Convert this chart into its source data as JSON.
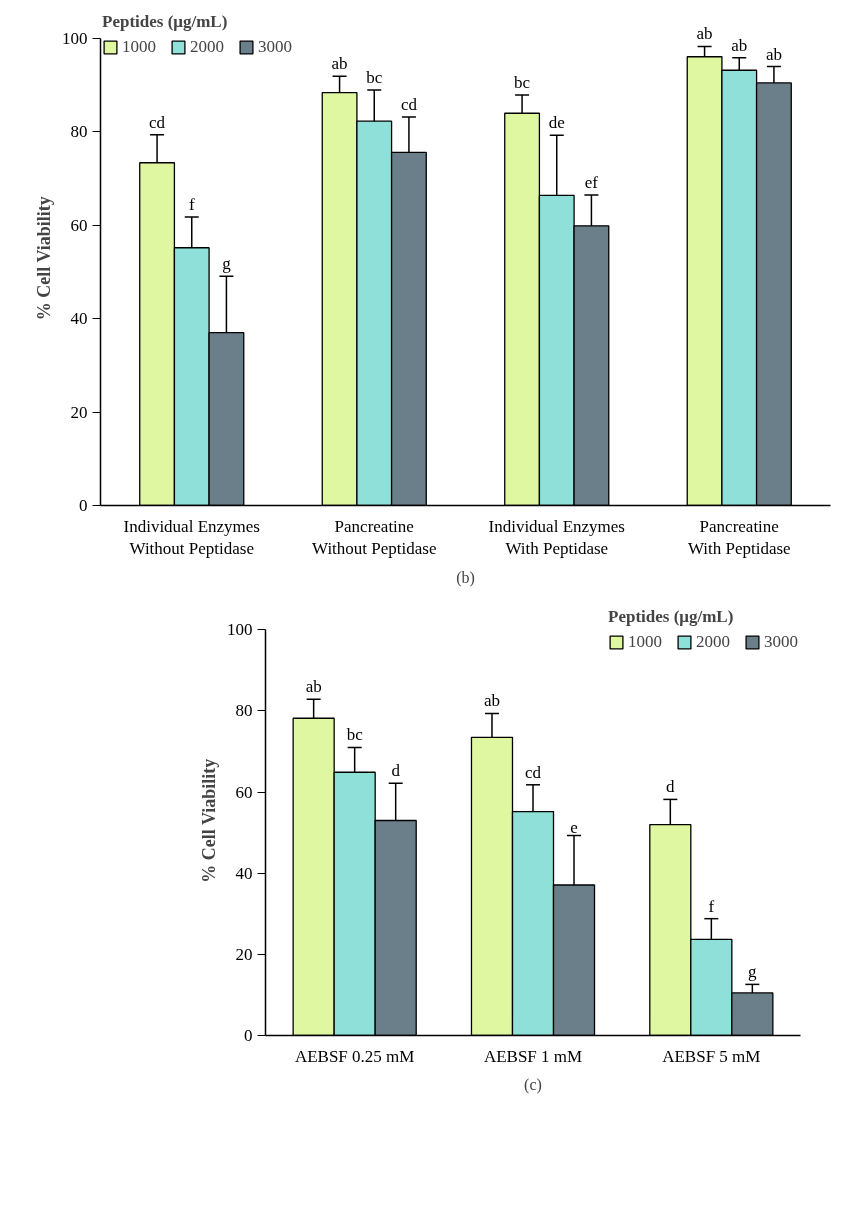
{
  "chart_data": [
    {
      "type": "bar",
      "ylabel": "% Cell Viability",
      "legend_title": "Peptides (μg/mL)",
      "legend": "top left",
      "categories": [
        "Individual Enzymes\nWithout Peptidase",
        "Pancreatine\nWithout Peptidase",
        "Individual Enzymes\nWith Peptidase",
        "Pancreatine\nWith Peptidase"
      ],
      "series": [
        {
          "name": "1000",
          "color": "#e0f7a1",
          "values": [
            73.4,
            88.4,
            84.0,
            96.1
          ],
          "errors": [
            6.0,
            3.5,
            3.9,
            2.2
          ]
        },
        {
          "name": "2000",
          "color": "#8fe0d8",
          "values": [
            55.2,
            82.3,
            66.4,
            93.2
          ],
          "errors": [
            6.6,
            6.7,
            12.9,
            2.7
          ]
        },
        {
          "name": "3000",
          "color": "#6b7f8a",
          "values": [
            37.0,
            75.6,
            59.9,
            90.5
          ],
          "errors": [
            12.1,
            7.6,
            6.6,
            3.5
          ]
        }
      ],
      "ylim": [
        0,
        100
      ],
      "yticks": [
        0,
        20,
        40,
        60,
        80,
        100
      ],
      "grid": false,
      "annotations": [
        "cd",
        "f",
        "g",
        "ab",
        "bc",
        "cd",
        "bc",
        "de",
        "ef",
        "ab",
        "ab",
        "ab",
        "(b)"
      ]
    },
    {
      "type": "bar",
      "ylabel": "% Cell Viability",
      "legend_title": "Peptides (μg/mL)",
      "legend": "top right",
      "categories": [
        "AEBSF 0.25 mM",
        "AEBSF 1 mM",
        "AEBSF 5 mM"
      ],
      "series": [
        {
          "name": "1000",
          "color": "#e0f7a1",
          "values": [
            78.2,
            73.5,
            52.0
          ],
          "errors": [
            4.7,
            5.9,
            6.2
          ]
        },
        {
          "name": "2000",
          "color": "#8fe0d8",
          "values": [
            64.9,
            55.2,
            23.7
          ],
          "errors": [
            6.1,
            6.6,
            5.1
          ]
        },
        {
          "name": "3000",
          "color": "#6b7f8a",
          "values": [
            53.0,
            37.1,
            10.5
          ],
          "errors": [
            9.2,
            12.2,
            2.1
          ]
        }
      ],
      "ylim": [
        0,
        100
      ],
      "yticks": [
        0,
        20,
        40,
        60,
        80,
        100
      ],
      "grid": false,
      "annotations": [
        "ab",
        "bc",
        "d",
        "ab",
        "cd",
        "e",
        "d",
        "f",
        "g",
        "(c)"
      ]
    }
  ]
}
